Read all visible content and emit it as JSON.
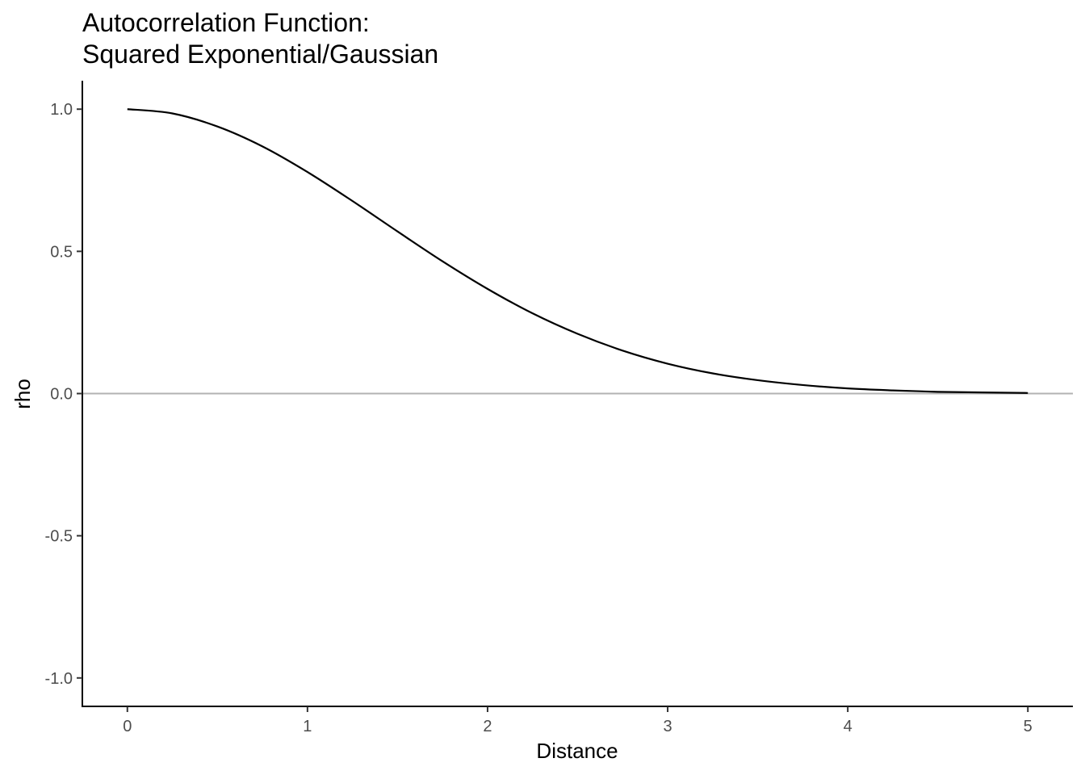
{
  "chart_data": {
    "type": "line",
    "title_lines": [
      "Autocorrelation Function:",
      "Squared Exponential/Gaussian"
    ],
    "xlabel": "Distance",
    "ylabel": "rho",
    "xlim": [
      -0.25,
      5.25
    ],
    "ylim": [
      -1.1,
      1.1
    ],
    "x_ticks": [
      0,
      1,
      2,
      3,
      4,
      5
    ],
    "x_tick_labels": [
      "0",
      "1",
      "2",
      "3",
      "4",
      "5"
    ],
    "y_ticks": [
      -1.0,
      -0.5,
      0.0,
      0.5,
      1.0
    ],
    "y_tick_labels": [
      "-1.0",
      "-0.5",
      "0.0",
      "0.5",
      "1.0"
    ],
    "reference_line": {
      "y": 0.0,
      "color": "#b3b3b3"
    },
    "grid": false,
    "series": [
      {
        "color": "#000000",
        "x": [
          0,
          0.25,
          0.5,
          0.75,
          1.0,
          1.25,
          1.5,
          1.75,
          2.0,
          2.25,
          2.5,
          2.75,
          3.0,
          3.25,
          3.5,
          3.75,
          4.0,
          4.25,
          4.5,
          4.75,
          5.0
        ],
        "y": [
          1.0,
          0.985,
          0.939,
          0.869,
          0.779,
          0.677,
          0.57,
          0.465,
          0.368,
          0.282,
          0.21,
          0.151,
          0.105,
          0.071,
          0.047,
          0.03,
          0.018,
          0.011,
          0.006,
          0.004,
          0.002
        ]
      }
    ]
  }
}
